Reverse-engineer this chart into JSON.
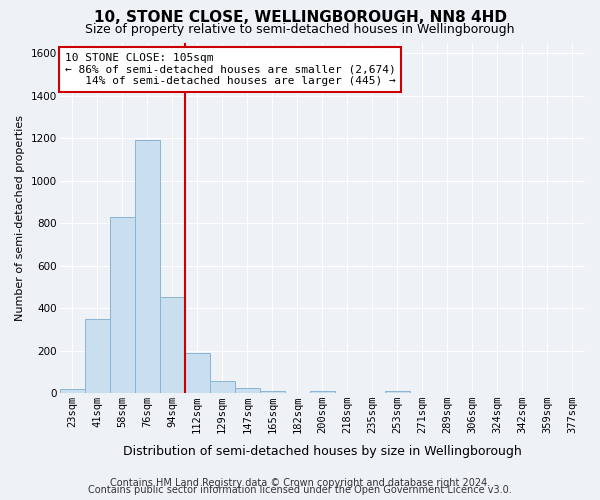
{
  "title": "10, STONE CLOSE, WELLINGBOROUGH, NN8 4HD",
  "subtitle": "Size of property relative to semi-detached houses in Wellingborough",
  "xlabel": "Distribution of semi-detached houses by size in Wellingborough",
  "ylabel": "Number of semi-detached properties",
  "categories": [
    "23sqm",
    "41sqm",
    "58sqm",
    "76sqm",
    "94sqm",
    "112sqm",
    "129sqm",
    "147sqm",
    "165sqm",
    "182sqm",
    "200sqm",
    "218sqm",
    "235sqm",
    "253sqm",
    "271sqm",
    "289sqm",
    "306sqm",
    "324sqm",
    "342sqm",
    "359sqm",
    "377sqm"
  ],
  "values": [
    20,
    350,
    830,
    1190,
    450,
    190,
    55,
    25,
    10,
    0,
    10,
    0,
    0,
    10,
    0,
    0,
    0,
    0,
    0,
    0,
    0
  ],
  "bar_color": "#c9dff0",
  "bar_edge_color": "#8ab4d4",
  "vline_color": "#cc0000",
  "vline_index": 4.5,
  "annotation_line1": "10 STONE CLOSE: 105sqm",
  "annotation_line2": "← 86% of semi-detached houses are smaller (2,674)",
  "annotation_line3": "   14% of semi-detached houses are larger (445) →",
  "annotation_box_color": "#ffffff",
  "annotation_box_edge_color": "#cc0000",
  "ylim": [
    0,
    1650
  ],
  "yticks": [
    0,
    200,
    400,
    600,
    800,
    1000,
    1200,
    1400,
    1600
  ],
  "background_color": "#eef2f7",
  "grid_color": "#ffffff",
  "footer1": "Contains HM Land Registry data © Crown copyright and database right 2024.",
  "footer2": "Contains public sector information licensed under the Open Government Licence v3.0.",
  "title_fontsize": 11,
  "subtitle_fontsize": 9,
  "ylabel_fontsize": 8,
  "xlabel_fontsize": 9,
  "tick_fontsize": 7.5,
  "footer_fontsize": 7
}
